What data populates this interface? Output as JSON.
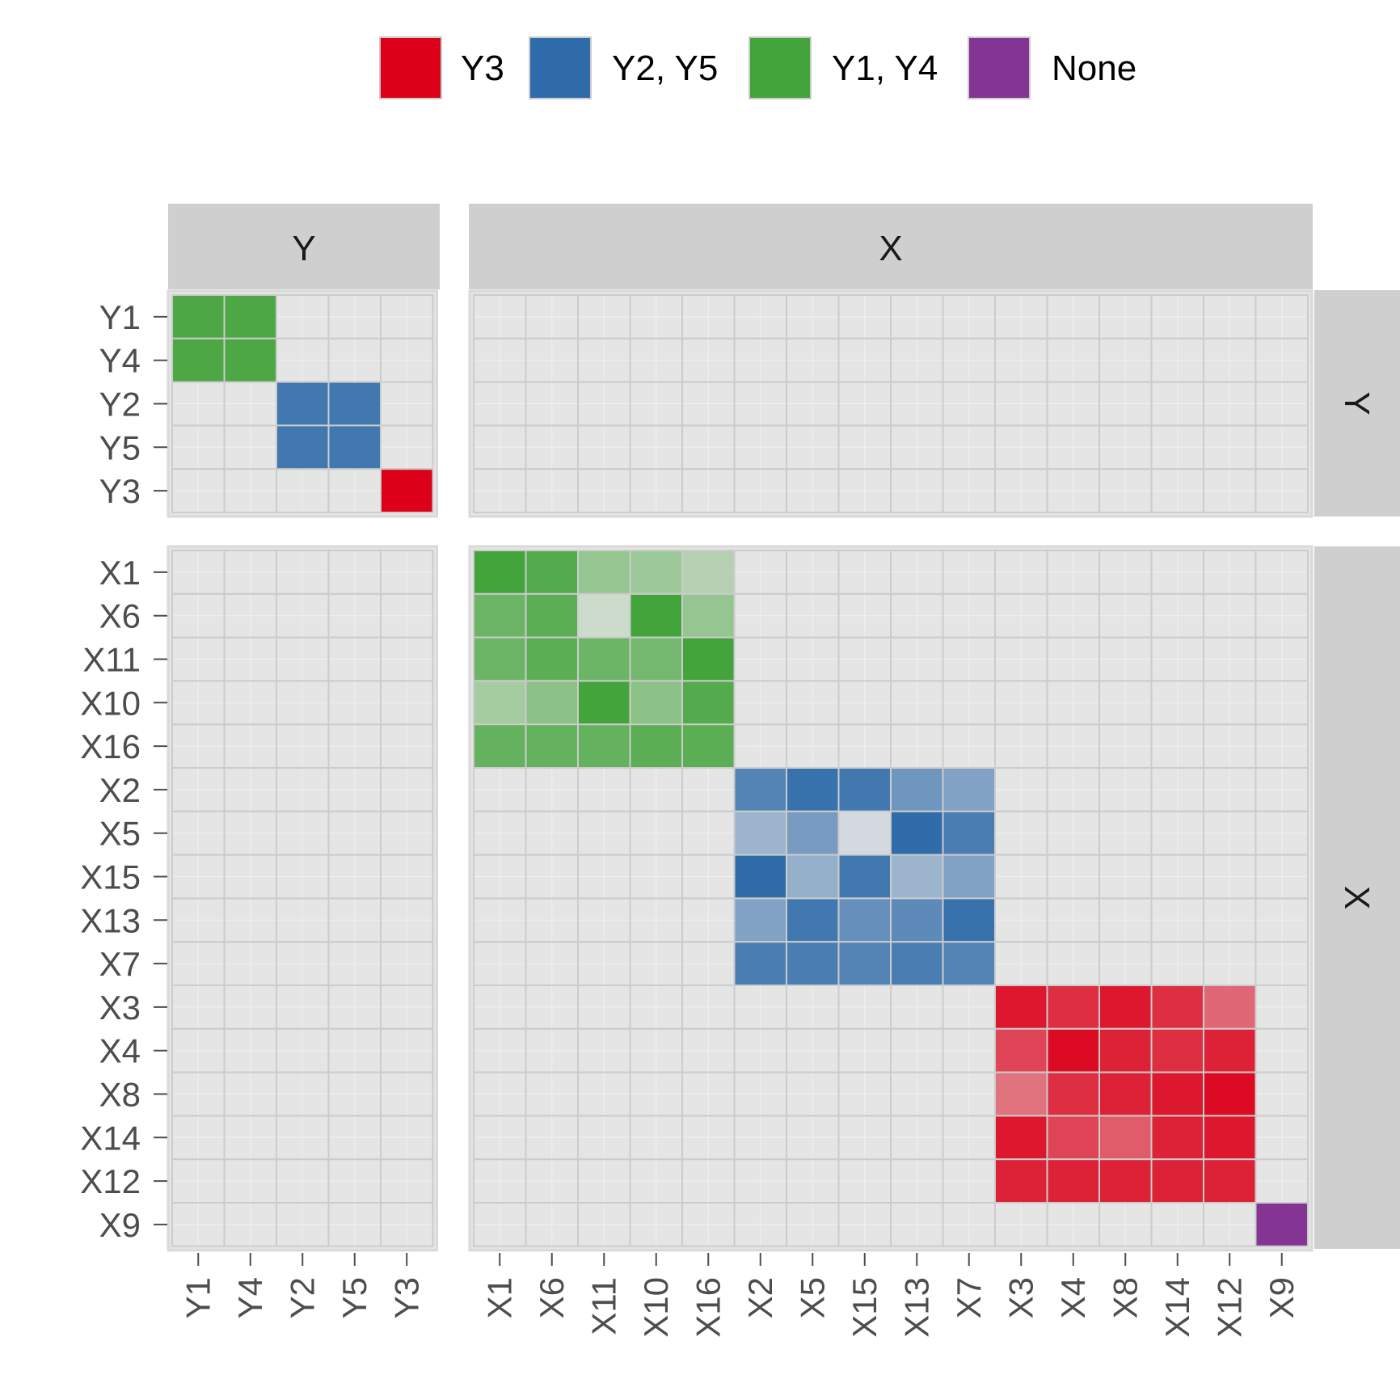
{
  "chart_data": {
    "type": "heatmap",
    "title": "",
    "facet_groups": [
      "Y",
      "X"
    ],
    "variables": {
      "Y": [
        "Y1",
        "Y4",
        "Y2",
        "Y5",
        "Y3"
      ],
      "X": [
        "X1",
        "X6",
        "X11",
        "X10",
        "X16",
        "X2",
        "X5",
        "X15",
        "X13",
        "X7",
        "X3",
        "X4",
        "X8",
        "X14",
        "X12",
        "X9"
      ]
    },
    "legend": {
      "position": "top",
      "items": [
        {
          "label": "Y3",
          "color": "#dc0019"
        },
        {
          "label": "Y2, Y5",
          "color": "#2f6ca9"
        },
        {
          "label": "Y1, Y4",
          "color": "#44a43c"
        },
        {
          "label": "None",
          "color": "#843593"
        }
      ]
    },
    "background_color": "#e5e5e5",
    "grid": true,
    "blocks": [
      {
        "panel": "Y-Y",
        "cluster": "Y1, Y4",
        "rows": [
          "Y1",
          "Y4"
        ],
        "cols": [
          "Y1",
          "Y4"
        ],
        "strength": [
          [
            0.95,
            0.95
          ],
          [
            0.95,
            0.95
          ]
        ]
      },
      {
        "panel": "Y-Y",
        "cluster": "Y2, Y5",
        "rows": [
          "Y2",
          "Y5"
        ],
        "cols": [
          "Y2",
          "Y5"
        ],
        "strength": [
          [
            0.9,
            0.9
          ],
          [
            0.9,
            0.9
          ]
        ]
      },
      {
        "panel": "Y-Y",
        "cluster": "Y3",
        "rows": [
          "Y3"
        ],
        "cols": [
          "Y3"
        ],
        "strength": [
          [
            1.0
          ]
        ]
      },
      {
        "panel": "X-X",
        "cluster": "Y1, Y4",
        "rows": [
          "X1",
          "X6",
          "X11",
          "X10",
          "X16"
        ],
        "cols": [
          "X1",
          "X6",
          "X11",
          "X10",
          "X16"
        ],
        "strength": [
          [
            1.0,
            0.9,
            0.5,
            0.45,
            0.3
          ],
          [
            0.75,
            0.85,
            0.15,
            1.0,
            0.5
          ],
          [
            0.75,
            0.85,
            0.75,
            0.7,
            1.0
          ],
          [
            0.4,
            0.55,
            1.0,
            0.55,
            0.9
          ],
          [
            0.8,
            0.8,
            0.8,
            0.85,
            0.85
          ]
        ]
      },
      {
        "panel": "X-X",
        "cluster": "Y2, Y5",
        "rows": [
          "X2",
          "X5",
          "X15",
          "X13",
          "X7"
        ],
        "cols": [
          "X2",
          "X5",
          "X15",
          "X13",
          "X7"
        ],
        "strength": [
          [
            0.8,
            0.95,
            0.9,
            0.65,
            0.55
          ],
          [
            0.4,
            0.6,
            0.1,
            1.0,
            0.85
          ],
          [
            1.0,
            0.45,
            0.9,
            0.4,
            0.55
          ],
          [
            0.55,
            0.9,
            0.7,
            0.75,
            0.95
          ],
          [
            0.85,
            0.85,
            0.8,
            0.85,
            0.8
          ]
        ]
      },
      {
        "panel": "X-X",
        "cluster": "Y3",
        "rows": [
          "X3",
          "X4",
          "X8",
          "X14",
          "X12"
        ],
        "cols": [
          "X3",
          "X4",
          "X8",
          "X14",
          "X12"
        ],
        "strength": [
          [
            0.9,
            0.8,
            0.9,
            0.8,
            0.55
          ],
          [
            0.7,
            0.95,
            0.85,
            0.8,
            0.85
          ],
          [
            0.5,
            0.8,
            0.85,
            0.9,
            0.95
          ],
          [
            0.9,
            0.7,
            0.6,
            0.85,
            0.9
          ],
          [
            0.85,
            0.85,
            0.85,
            0.85,
            0.85
          ]
        ]
      },
      {
        "panel": "X-X",
        "cluster": "None",
        "rows": [
          "X9"
        ],
        "cols": [
          "X9"
        ],
        "strength": [
          [
            1.0
          ]
        ]
      }
    ]
  }
}
